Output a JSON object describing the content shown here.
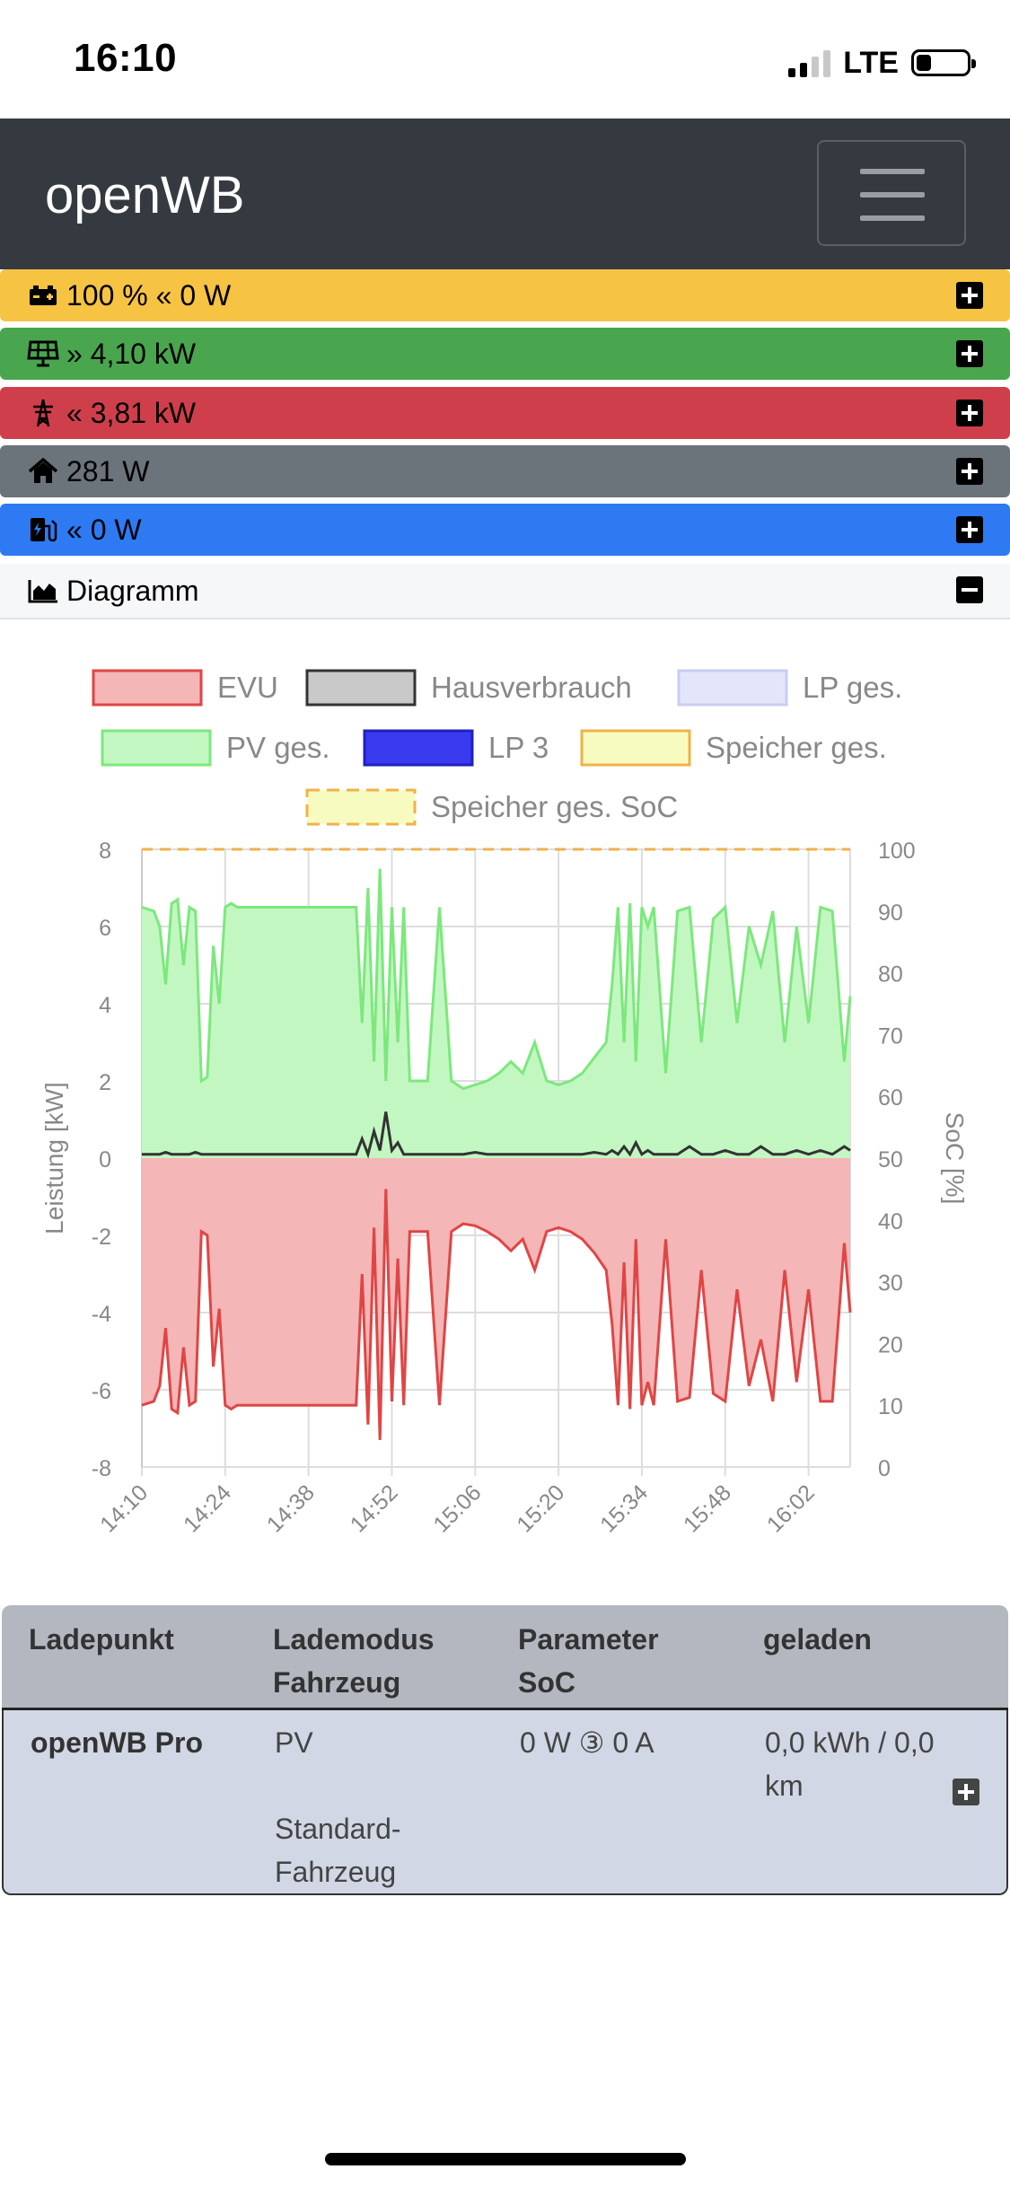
{
  "status_bar": {
    "time": "16:10",
    "network": "LTE",
    "signal_bars": 2,
    "battery_level": 0.3
  },
  "navbar": {
    "brand": "openWB",
    "menu_icon": "hamburger-icon"
  },
  "summary": {
    "battery": {
      "text": "100 % « 0 W",
      "icon": "battery-car-icon",
      "color": "#f6c343"
    },
    "pv": {
      "text": "» 4,10 kW",
      "icon": "solar-panel-icon",
      "color": "#4aa64e"
    },
    "grid": {
      "text": "« 3,81 kW",
      "icon": "power-tower-icon",
      "color": "#cf3f4b"
    },
    "house": {
      "text": "281 W",
      "icon": "home-icon",
      "color": "#6b737b"
    },
    "chargepoint": {
      "text": "« 0 W",
      "icon": "ev-charger-icon",
      "color": "#2e7af2"
    },
    "diagram": {
      "text": "Diagramm",
      "icon": "area-chart-icon"
    }
  },
  "chart_data": {
    "type": "area",
    "legend": [
      {
        "name": "EVU",
        "fill": "#f4b6b6",
        "stroke": "#e04545"
      },
      {
        "name": "Hausverbrauch",
        "fill": "#c9c9c9",
        "stroke": "#333333"
      },
      {
        "name": "LP ges.",
        "fill": "#e3e6fa",
        "stroke": "#c9cdf0"
      },
      {
        "name": "PV ges.",
        "fill": "#c2f7c2",
        "stroke": "#7ce87c"
      },
      {
        "name": "LP 3",
        "fill": "#3a3af0",
        "stroke": "#2020c0"
      },
      {
        "name": "Speicher ges.",
        "fill": "#f8fbbf",
        "stroke": "#f0b24a"
      },
      {
        "name": "Speicher ges. SoC",
        "fill": "#f8fbbf",
        "stroke": "#f0b24a",
        "dashed": true
      }
    ],
    "x_ticks": [
      "14:10",
      "14:24",
      "14:38",
      "14:52",
      "15:06",
      "15:20",
      "15:34",
      "15:48",
      "16:02"
    ],
    "ylabel": "Leistung [kW]",
    "y2label": "SoC [%]",
    "ylim": [
      -8,
      8
    ],
    "y_ticks": [
      "8",
      "6",
      "4",
      "2",
      "0",
      "-2",
      "-4",
      "-6",
      "-8"
    ],
    "y2lim": [
      0,
      100
    ],
    "y2_ticks": [
      "100",
      "90",
      "80",
      "70",
      "60",
      "50",
      "40",
      "30",
      "20",
      "10",
      "0"
    ],
    "time": [
      0,
      2,
      3,
      4,
      5,
      6,
      7,
      8,
      9,
      10,
      11,
      12,
      13,
      14,
      15,
      16,
      18,
      20,
      22,
      24,
      26,
      28,
      30,
      32,
      34,
      36,
      37,
      38,
      39,
      40,
      41,
      42,
      43,
      44,
      45,
      46,
      48,
      50,
      52,
      54,
      56,
      58,
      60,
      62,
      64,
      66,
      68,
      70,
      72,
      74,
      76,
      78,
      79,
      80,
      81,
      82,
      83,
      84,
      85,
      86,
      88,
      90,
      92,
      94,
      96,
      98,
      100,
      102,
      104,
      106,
      108,
      110,
      112,
      114,
      116,
      118,
      119
    ],
    "pv_kw": [
      6.5,
      6.4,
      6.0,
      4.5,
      6.6,
      6.7,
      5.0,
      6.5,
      6.4,
      2.0,
      2.1,
      5.5,
      4.0,
      6.5,
      6.6,
      6.5,
      6.5,
      6.5,
      6.5,
      6.5,
      6.5,
      6.5,
      6.5,
      6.5,
      6.5,
      6.5,
      3.5,
      7.0,
      2.5,
      7.5,
      2.0,
      6.5,
      3.0,
      6.5,
      2.0,
      2.0,
      2.0,
      6.5,
      2.0,
      1.8,
      1.9,
      2.0,
      2.2,
      2.5,
      2.2,
      3.0,
      2.0,
      1.9,
      2.0,
      2.2,
      2.6,
      3.0,
      4.5,
      6.5,
      3.0,
      6.6,
      2.5,
      6.5,
      6.0,
      6.5,
      2.2,
      6.4,
      6.5,
      3.0,
      6.2,
      6.5,
      3.5,
      6.0,
      5.0,
      6.4,
      3.0,
      6.0,
      3.5,
      6.5,
      6.4,
      2.5,
      4.2
    ],
    "house_kw": [
      0.1,
      0.1,
      0.1,
      0.15,
      0.1,
      0.1,
      0.1,
      0.1,
      0.15,
      0.1,
      0.1,
      0.1,
      0.1,
      0.1,
      0.1,
      0.1,
      0.1,
      0.1,
      0.1,
      0.1,
      0.1,
      0.1,
      0.1,
      0.1,
      0.1,
      0.1,
      0.5,
      0.1,
      0.7,
      0.2,
      1.2,
      0.2,
      0.4,
      0.1,
      0.1,
      0.1,
      0.1,
      0.1,
      0.1,
      0.1,
      0.15,
      0.1,
      0.1,
      0.1,
      0.1,
      0.1,
      0.1,
      0.1,
      0.1,
      0.1,
      0.15,
      0.1,
      0.2,
      0.1,
      0.3,
      0.1,
      0.4,
      0.1,
      0.2,
      0.1,
      0.1,
      0.1,
      0.3,
      0.1,
      0.1,
      0.2,
      0.1,
      0.1,
      0.3,
      0.1,
      0.1,
      0.2,
      0.1,
      0.2,
      0.1,
      0.3,
      0.2
    ],
    "evu_kw": [
      -6.4,
      -6.3,
      -5.9,
      -4.4,
      -6.5,
      -6.6,
      -4.9,
      -6.4,
      -6.3,
      -1.9,
      -2.0,
      -5.4,
      -3.9,
      -6.4,
      -6.5,
      -6.4,
      -6.4,
      -6.4,
      -6.4,
      -6.4,
      -6.4,
      -6.4,
      -6.4,
      -6.4,
      -6.4,
      -6.4,
      -3.0,
      -6.9,
      -1.8,
      -7.3,
      -0.8,
      -6.3,
      -2.6,
      -6.4,
      -1.9,
      -1.9,
      -1.9,
      -6.4,
      -1.9,
      -1.7,
      -1.75,
      -1.9,
      -2.1,
      -2.4,
      -2.1,
      -2.9,
      -1.9,
      -1.8,
      -1.9,
      -2.1,
      -2.45,
      -2.9,
      -4.3,
      -6.4,
      -2.7,
      -6.5,
      -2.1,
      -6.4,
      -5.8,
      -6.4,
      -2.1,
      -6.3,
      -6.2,
      -2.9,
      -6.1,
      -6.3,
      -3.4,
      -5.9,
      -4.7,
      -6.3,
      -2.9,
      -5.8,
      -3.4,
      -6.3,
      -6.3,
      -2.2,
      -4.0
    ],
    "soc_percent": 100
  },
  "table": {
    "headers": {
      "col1": "Ladepunkt",
      "col2": "Lademodus",
      "col2b": "Fahrzeug",
      "col3": "Parameter",
      "col3b": "SoC",
      "col4": "geladen"
    },
    "row": {
      "name": "openWB Pro",
      "mode": "PV",
      "vehicle": "Standard-",
      "vehicle2": "Fahrzeug",
      "parameter": "0 W ③ 0 A",
      "charged": "0,0 kWh / 0,0",
      "charged2": "km"
    }
  }
}
